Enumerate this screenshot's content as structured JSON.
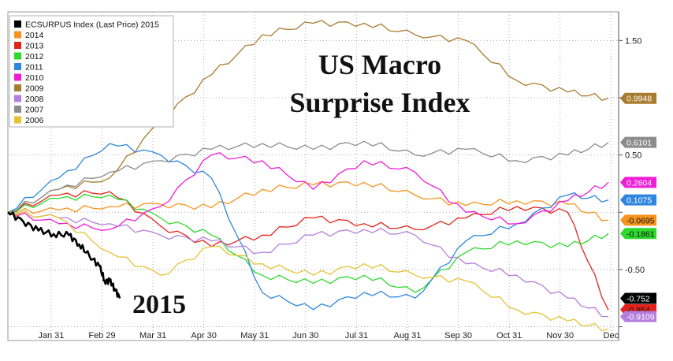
{
  "chart_data": {
    "type": "line",
    "title": "US Macro",
    "subtitle": "Surprise Index",
    "annotation": "2015",
    "x_ticks": [
      "Jan 31",
      "Feb 29",
      "Mar 31",
      "Apr 30",
      "May 31",
      "Jun 30",
      "Jul 31",
      "Aug 31",
      "Sep 30",
      "Oct 31",
      "Nov 30",
      "Dec"
    ],
    "y_ticks": [
      1.5,
      1.0,
      0.5,
      0,
      -0.5,
      -1.0
    ],
    "y_tick_labels": [
      "1.50",
      "",
      "0.50",
      "",
      "-0.50",
      ""
    ],
    "ylim": [
      -1.12,
      1.75
    ],
    "xlim": [
      0,
      12
    ],
    "grid": true,
    "legend_position": "top-left",
    "series": [
      {
        "name": "ECSURPUS Index (Last Price) 2015",
        "color": "#000000",
        "last_label": "-0.752",
        "x": [
          0,
          0.3,
          0.6,
          0.9,
          1.2,
          1.4,
          1.6,
          1.8,
          1.9,
          2.0,
          2.1,
          2.2
        ],
        "y": [
          0,
          -0.08,
          -0.16,
          -0.19,
          -0.2,
          -0.28,
          -0.38,
          -0.47,
          -0.6,
          -0.6,
          -0.67,
          -0.752
        ]
      },
      {
        "name": "2014",
        "color": "#f7941d",
        "last_label": "-0.0695",
        "x": [
          0,
          1,
          2,
          3,
          4,
          5,
          6,
          7,
          8,
          9,
          10,
          11,
          11.8
        ],
        "y": [
          0,
          0.02,
          0.05,
          0.07,
          0.04,
          0.2,
          0.24,
          0.26,
          0.15,
          0.06,
          0.1,
          0.07,
          -0.0695
        ]
      },
      {
        "name": "2013",
        "color": "#e2231a",
        "last_label": "-0.854",
        "x": [
          0,
          1,
          2,
          3,
          4,
          5,
          6,
          7,
          8,
          9,
          10,
          11,
          11.8
        ],
        "y": [
          0,
          0.15,
          0.18,
          -0.12,
          -0.3,
          -0.2,
          -0.05,
          -0.1,
          -0.15,
          -0.05,
          0.05,
          0.0,
          -0.854
        ]
      },
      {
        "name": "2012",
        "color": "#2dd92d",
        "last_label": "-0.1861",
        "x": [
          0,
          1,
          2,
          3,
          4,
          5,
          6,
          7,
          8,
          9,
          10,
          11,
          11.8
        ],
        "y": [
          0,
          0.12,
          0.15,
          -0.05,
          -0.2,
          -0.55,
          -0.62,
          -0.55,
          -0.7,
          -0.35,
          -0.25,
          -0.3,
          -0.1861
        ]
      },
      {
        "name": "2011",
        "color": "#2e86de",
        "last_label": "0.1075",
        "x": [
          0,
          1,
          2,
          3,
          4,
          5,
          6,
          7,
          8,
          9,
          10,
          11,
          11.8
        ],
        "y": [
          0,
          0.3,
          0.6,
          0.5,
          0.3,
          -0.7,
          -0.85,
          -0.7,
          -0.75,
          -0.25,
          -0.1,
          0.15,
          0.1075
        ]
      },
      {
        "name": "2010",
        "color": "#ee1dd6",
        "last_label": "0.2604",
        "x": [
          0,
          1,
          2,
          3,
          4,
          5,
          6,
          7,
          8,
          9,
          10,
          11,
          11.8
        ],
        "y": [
          0,
          -0.1,
          -0.15,
          0.05,
          0.5,
          0.45,
          0.2,
          0.45,
          0.35,
          0.0,
          -0.1,
          0.1,
          0.2604
        ]
      },
      {
        "name": "2009",
        "color": "#a87c2e",
        "last_label": "0.9948",
        "x": [
          0,
          1,
          2,
          3,
          4,
          5,
          6,
          7,
          8,
          9,
          10,
          11,
          11.8
        ],
        "y": [
          0,
          0.2,
          0.3,
          0.8,
          1.2,
          1.55,
          1.65,
          1.65,
          1.55,
          1.5,
          1.15,
          1.05,
          0.9948
        ]
      },
      {
        "name": "2008",
        "color": "#b57edc",
        "last_label": "-0.9109",
        "x": [
          0,
          1,
          2,
          3,
          4,
          5,
          6,
          7,
          8,
          9,
          10,
          11,
          11.8
        ],
        "y": [
          0,
          -0.05,
          -0.1,
          -0.2,
          -0.25,
          -0.35,
          -0.2,
          -0.15,
          -0.2,
          -0.45,
          -0.55,
          -0.75,
          -0.9109
        ]
      },
      {
        "name": "2007",
        "color": "#8c8c8c",
        "last_label": "0.6101",
        "x": [
          0,
          1,
          2,
          3,
          4,
          5,
          6,
          7,
          8,
          9,
          10,
          11,
          11.8
        ],
        "y": [
          0,
          0.2,
          0.35,
          0.45,
          0.55,
          0.6,
          0.55,
          0.62,
          0.5,
          0.55,
          0.45,
          0.5,
          0.6101
        ]
      },
      {
        "name": "2006",
        "color": "#e3c334",
        "last_label": "",
        "x": [
          0,
          1,
          2,
          3,
          4,
          5,
          6,
          7,
          8,
          9,
          10,
          11,
          11.8
        ],
        "y": [
          0,
          -0.05,
          -0.35,
          -0.55,
          -0.3,
          -0.45,
          -0.55,
          -0.45,
          -0.55,
          -0.6,
          -0.85,
          -0.95,
          -1.02
        ]
      }
    ]
  }
}
